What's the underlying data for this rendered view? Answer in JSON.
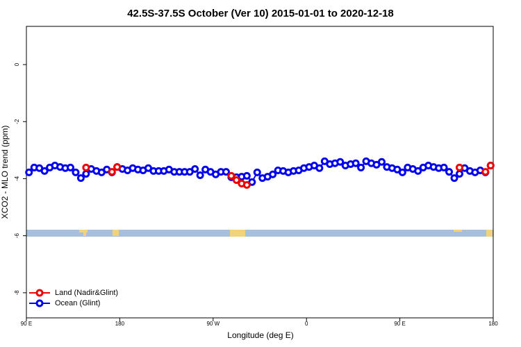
{
  "chart_data": {
    "type": "line",
    "title": "42.5S-37.5S October (Ver 10)   2015-01-01 to 2020-12-18",
    "x_label": "Longitude (deg E)",
    "y_label": "XCO2 - MLO trend (ppm)",
    "x": [
      92.5,
      97.5,
      102.5,
      107.5,
      112.5,
      117.5,
      122.5,
      127.5,
      132.5,
      137.5,
      142.5,
      147.5,
      152.5,
      157.5,
      162.5,
      167.5,
      172.5,
      177.5,
      182.5,
      187.5,
      192.5,
      197.5,
      202.5,
      207.5,
      212.5,
      217.5,
      222.5,
      227.5,
      232.5,
      237.5,
      242.5,
      247.5,
      252.5,
      257.5,
      262.5,
      267.5,
      272.5,
      277.5,
      282.5,
      287.5,
      292.5,
      297.5,
      302.5,
      307.5,
      312.5,
      317.5,
      322.5,
      327.5,
      332.5,
      337.5,
      342.5,
      347.5,
      352.5,
      357.5,
      362.5,
      367.5,
      372.5,
      377.5,
      382.5,
      387.5,
      392.5,
      397.5,
      402.5,
      407.5,
      412.5,
      417.5,
      422.5,
      427.5,
      432.5,
      437.5,
      442.5,
      447.5,
      452.5,
      457.5,
      462.5,
      467.5,
      472.5,
      477.5,
      482.5,
      487.5,
      492.5,
      497.5,
      502.5,
      507.5,
      512.5,
      517.5,
      522.5,
      527.5,
      532.5,
      537.5
    ],
    "series": [
      {
        "name": "Ocean (Glint)",
        "color": "#0000ee",
        "values": [
          -3.78,
          -3.61,
          -3.63,
          -3.73,
          -3.61,
          -3.54,
          -3.59,
          -3.63,
          -3.61,
          -3.78,
          -3.98,
          -3.83,
          -3.66,
          -3.73,
          -3.78,
          -3.68,
          -3.78,
          -3.59,
          -3.66,
          -3.71,
          -3.63,
          -3.68,
          -3.71,
          -3.63,
          -3.73,
          -3.73,
          -3.73,
          -3.68,
          -3.76,
          -3.76,
          -3.76,
          -3.76,
          -3.66,
          -3.88,
          -3.68,
          -3.76,
          -3.85,
          -3.76,
          -3.76,
          -3.95,
          -3.95,
          -3.93,
          -3.9,
          -4.12,
          -3.78,
          -3.98,
          -3.93,
          -3.85,
          -3.71,
          -3.73,
          -3.78,
          -3.73,
          -3.71,
          -3.63,
          -3.59,
          -3.54,
          -3.63,
          -3.39,
          -3.49,
          -3.46,
          -3.41,
          -3.54,
          -3.49,
          -3.46,
          -3.61,
          -3.39,
          -3.46,
          -3.51,
          -3.41,
          -3.59,
          -3.63,
          -3.68,
          -3.78,
          -3.61,
          -3.66,
          -3.73,
          -3.61,
          -3.54,
          -3.59,
          -3.63,
          -3.61,
          -3.76,
          -3.98,
          -3.83,
          -3.63,
          -3.73,
          -3.78,
          -3.71,
          -3.78,
          -3.54
        ]
      },
      {
        "name": "Land (Nadir&Glint)",
        "color": "#ee0000",
        "values": [
          null,
          null,
          null,
          null,
          null,
          null,
          null,
          null,
          null,
          null,
          null,
          -3.61,
          null,
          null,
          null,
          null,
          -3.76,
          -3.59,
          null,
          null,
          null,
          null,
          null,
          null,
          null,
          null,
          null,
          null,
          null,
          null,
          null,
          null,
          null,
          null,
          null,
          null,
          null,
          null,
          null,
          -3.9,
          -4.05,
          -4.17,
          -4.22,
          null,
          null,
          null,
          null,
          null,
          null,
          null,
          null,
          null,
          null,
          null,
          null,
          null,
          null,
          null,
          null,
          null,
          null,
          null,
          null,
          null,
          null,
          null,
          null,
          null,
          null,
          null,
          null,
          null,
          null,
          null,
          null,
          null,
          null,
          null,
          null,
          null,
          null,
          null,
          null,
          -3.61,
          null,
          null,
          null,
          null,
          -3.76,
          -3.54
        ]
      }
    ],
    "xlim": [
      90,
      540
    ],
    "xticks": [
      {
        "value": 90,
        "label": "90 E"
      },
      180,
      {
        "value": 270,
        "label": "90 W"
      },
      {
        "value": 360,
        "label": "0"
      },
      {
        "value": 450,
        "label": "90 E"
      },
      {
        "value": 540,
        "label": "180"
      }
    ],
    "ylim": [
      -8.88,
      1.34
    ],
    "yticks": [
      0,
      -2,
      -4,
      -6,
      -8
    ],
    "legend": "bottomleft"
  }
}
